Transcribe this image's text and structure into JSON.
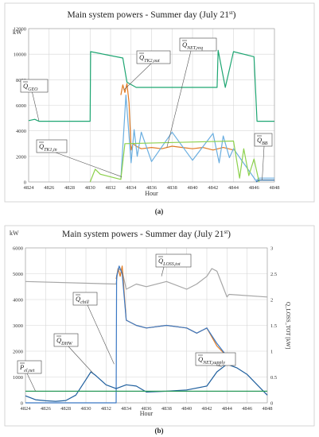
{
  "chart_data": [
    {
      "type": "line",
      "panel_label": "(a)",
      "title": "Main system powers - Summer day (July 21",
      "title_sup": "st",
      "title_close": ")",
      "ylabel": "kW",
      "xlabel": "Hour",
      "xlim": [
        4824,
        4848
      ],
      "ylim": [
        0,
        12000
      ],
      "x_ticks": [
        4824,
        4826,
        4828,
        4830,
        4832,
        4834,
        4836,
        4838,
        4840,
        4842,
        4844,
        4846,
        4848
      ],
      "y_ticks": [
        0,
        2000,
        4000,
        6000,
        8000,
        10000,
        12000
      ],
      "grid": true,
      "annotations": [
        {
          "base": "Q",
          "sub": "GEO",
          "series": "Q_GEO"
        },
        {
          "base": "Q",
          "sub": "TK2,out",
          "series": "Q_TK2,out"
        },
        {
          "base": "Q",
          "sub": "NET,req",
          "series": "Q_NET,req"
        },
        {
          "base": "Q",
          "sub": "TK1,in",
          "series": "Q_TK1,in"
        },
        {
          "base": "Q",
          "sub": "BB",
          "series": "Q_BB"
        }
      ],
      "series": [
        {
          "name": "Q_GEO",
          "color": "#1ea672",
          "x": [
            4824,
            4824.6,
            4825,
            4830,
            4830.05,
            4833.2,
            4833.6,
            4834.5,
            4842.4,
            4842.5,
            4843.2,
            4844,
            4846,
            4846.3,
            4848
          ],
          "y": [
            4800,
            4900,
            4750,
            4750,
            10200,
            9700,
            7800,
            7400,
            7400,
            10300,
            7400,
            10200,
            9800,
            4750,
            4750
          ]
        },
        {
          "name": "Q_TK2,out",
          "color": "#e07b24",
          "x": [
            4833,
            4833.2,
            4833.4,
            4833.6,
            4833.8,
            4834,
            4834.2,
            4834.5,
            4835,
            4836,
            4837,
            4838,
            4839,
            4840,
            4841,
            4842,
            4842.5,
            4843,
            4843.5,
            4844
          ],
          "y": [
            6800,
            7600,
            7000,
            7700,
            6200,
            2500,
            3000,
            2800,
            2600,
            2700,
            2600,
            2800,
            2700,
            2600,
            2700,
            2500,
            2600,
            2700,
            2600,
            2500
          ]
        },
        {
          "name": "Q_NET,req",
          "color": "#6aaee0",
          "x": [
            4833,
            4833.5,
            4834,
            4834.3,
            4834.6,
            4835,
            4836,
            4838,
            4840,
            4842,
            4842.6,
            4843,
            4843.6,
            4844,
            4846.2,
            4846.5,
            4848
          ],
          "y": [
            200,
            6800,
            1500,
            4100,
            2000,
            3900,
            1600,
            3900,
            1700,
            3800,
            1500,
            3600,
            1900,
            2600,
            100,
            300,
            300
          ]
        },
        {
          "name": "Q_TK1,in",
          "color": "#8cd14c",
          "x": [
            4830,
            4830.5,
            4831,
            4832,
            4833,
            4833.4,
            4844,
            4844.6,
            4845,
            4845.5,
            4846,
            4846.5
          ],
          "y": [
            0,
            1000,
            600,
            400,
            200,
            3000,
            3200,
            300,
            2600,
            500,
            1800,
            0
          ]
        },
        {
          "name": "Q_BB",
          "color": "#2e6da4",
          "x": [
            4846.2,
            4846.5,
            4848
          ],
          "y": [
            0,
            150,
            150
          ]
        }
      ]
    },
    {
      "type": "line",
      "panel_label": "(b)",
      "title": "Main system powers - Summer day (July 21",
      "title_sup": "st",
      "title_close": ")",
      "ylabel": "kW",
      "y2label": "Q_LOSS_TOT [kW]",
      "xlabel": "Hour",
      "xlim": [
        4824,
        4848
      ],
      "ylim": [
        0,
        6000
      ],
      "y2lim": [
        0,
        3
      ],
      "x_ticks": [
        4824,
        4826,
        4828,
        4830,
        4832,
        4834,
        4836,
        4838,
        4840,
        4842,
        4844,
        4846,
        4848
      ],
      "y_ticks": [
        0,
        1000,
        2000,
        3000,
        4000,
        5000,
        6000
      ],
      "y2_ticks": [
        0,
        0.5,
        1,
        1.5,
        2,
        2.5,
        3
      ],
      "grid": true,
      "annotations": [
        {
          "base": "Q",
          "sub": "LOSS,tot",
          "series": "Q_LOSS,tot"
        },
        {
          "base": "Q",
          "sub": "chill",
          "series": "Q_chill"
        },
        {
          "base": "Q",
          "sub": "DHW",
          "series": "Q_DHW"
        },
        {
          "base": "Q",
          "sub": "NET,supply",
          "series": "Q_NET,supply"
        },
        {
          "base": "P",
          "sub": "el,net",
          "series": "P_el,net"
        }
      ],
      "series": [
        {
          "name": "Q_LOSS,tot",
          "color": "#a6a6a6",
          "axis": "y2",
          "x": [
            4824,
            4833,
            4833.2,
            4833.6,
            4834,
            4835,
            4836,
            4838,
            4840,
            4841,
            4842,
            4842.5,
            4843,
            4843.5,
            4844,
            4844.2,
            4848
          ],
          "y": [
            2.35,
            2.3,
            2.6,
            2.55,
            2.2,
            2.3,
            2.25,
            2.35,
            2.2,
            2.3,
            2.45,
            2.6,
            2.55,
            2.3,
            2.05,
            2.1,
            2.05
          ]
        },
        {
          "name": "Q_NET,supply",
          "color": "#e07b24",
          "axis": "y",
          "x": [
            4833,
            4833.2,
            4833.4,
            4833.6,
            4834,
            4835,
            4836,
            4838,
            4840,
            4841,
            4842,
            4843,
            4844
          ],
          "y": [
            4800,
            5200,
            4900,
            5300,
            3200,
            3000,
            2900,
            3000,
            2900,
            2700,
            2900,
            2200,
            1800
          ]
        },
        {
          "name": "Q_chill",
          "color": "#3a78c4",
          "axis": "y",
          "x": [
            4824,
            4833,
            4833.05,
            4833.3,
            4833.6,
            4834,
            4835,
            4836,
            4838,
            4840,
            4841,
            4842,
            4843,
            4844
          ],
          "y": [
            0,
            0,
            4900,
            5300,
            5000,
            3200,
            3000,
            2900,
            3000,
            2900,
            2700,
            2900,
            2300,
            1800
          ]
        },
        {
          "name": "Q_DHW",
          "color": "#1f5f9e",
          "axis": "y",
          "x": [
            4824,
            4825,
            4826,
            4827,
            4828,
            4829,
            4830,
            4830.5,
            4831,
            4832,
            4833,
            4834,
            4835,
            4836,
            4838,
            4840,
            4842,
            4843,
            4844,
            4845,
            4846,
            4847,
            4848
          ],
          "y": [
            270,
            120,
            80,
            60,
            90,
            300,
            900,
            1200,
            1050,
            700,
            550,
            700,
            650,
            420,
            450,
            500,
            650,
            1200,
            1500,
            1350,
            1100,
            700,
            300
          ]
        },
        {
          "name": "P_el,net",
          "color": "#2a9a5a",
          "axis": "y",
          "x": [
            4824,
            4848
          ],
          "y": [
            450,
            450
          ]
        }
      ]
    }
  ]
}
